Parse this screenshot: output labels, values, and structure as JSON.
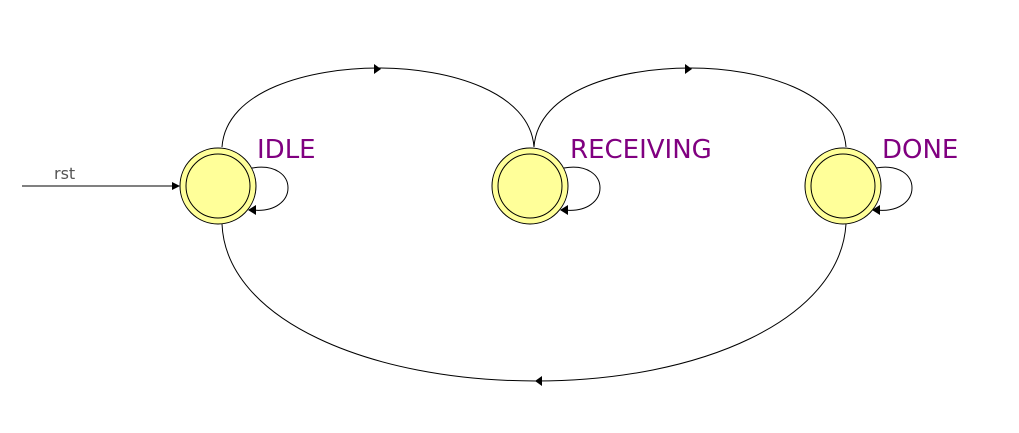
{
  "diagram": {
    "type": "state-machine",
    "states": [
      {
        "id": "idle",
        "label": "IDLE"
      },
      {
        "id": "receiving",
        "label": "RECEIVING"
      },
      {
        "id": "done",
        "label": "DONE"
      }
    ],
    "reset": {
      "label": "rst",
      "target": "IDLE"
    },
    "transitions": [
      {
        "from": "IDLE",
        "to": "RECEIVING"
      },
      {
        "from": "RECEIVING",
        "to": "DONE"
      },
      {
        "from": "DONE",
        "to": "IDLE"
      },
      {
        "from": "IDLE",
        "to": "IDLE"
      },
      {
        "from": "RECEIVING",
        "to": "RECEIVING"
      },
      {
        "from": "DONE",
        "to": "DONE"
      }
    ],
    "colors": {
      "state_fill": "#ffff99",
      "label": "#800080",
      "edge": "#000000",
      "reset_label": "#555555"
    }
  }
}
